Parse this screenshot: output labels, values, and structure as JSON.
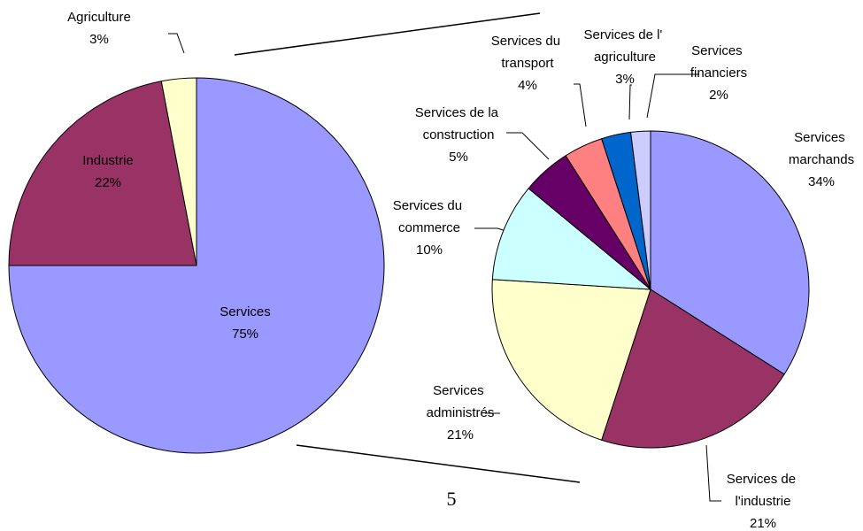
{
  "chart_data": [
    {
      "type": "pie",
      "categories": [
        "Services",
        "Industrie",
        "Agriculture"
      ],
      "values": [
        75,
        22,
        3
      ],
      "value_labels": [
        "75%",
        "22%",
        "3%"
      ],
      "colors": [
        "#9999ff",
        "#993366",
        "#ffffcc"
      ]
    },
    {
      "type": "pie",
      "categories": [
        "Services marchands",
        "Services de l'industrie",
        "Services administrés",
        "Services du commerce",
        "Services de la construction",
        "Services du transport",
        "Services de l' agriculture",
        "Services financiers"
      ],
      "values": [
        34,
        21,
        21,
        10,
        5,
        4,
        3,
        2
      ],
      "value_labels": [
        "34%",
        "21%",
        "21%",
        "10%",
        "5%",
        "4%",
        "3%",
        "2%"
      ],
      "colors": [
        "#9999ff",
        "#993366",
        "#ffffcc",
        "#ccffff",
        "#660066",
        "#ff8080",
        "#0066cc",
        "#ccccff"
      ]
    }
  ],
  "page_number": "5"
}
